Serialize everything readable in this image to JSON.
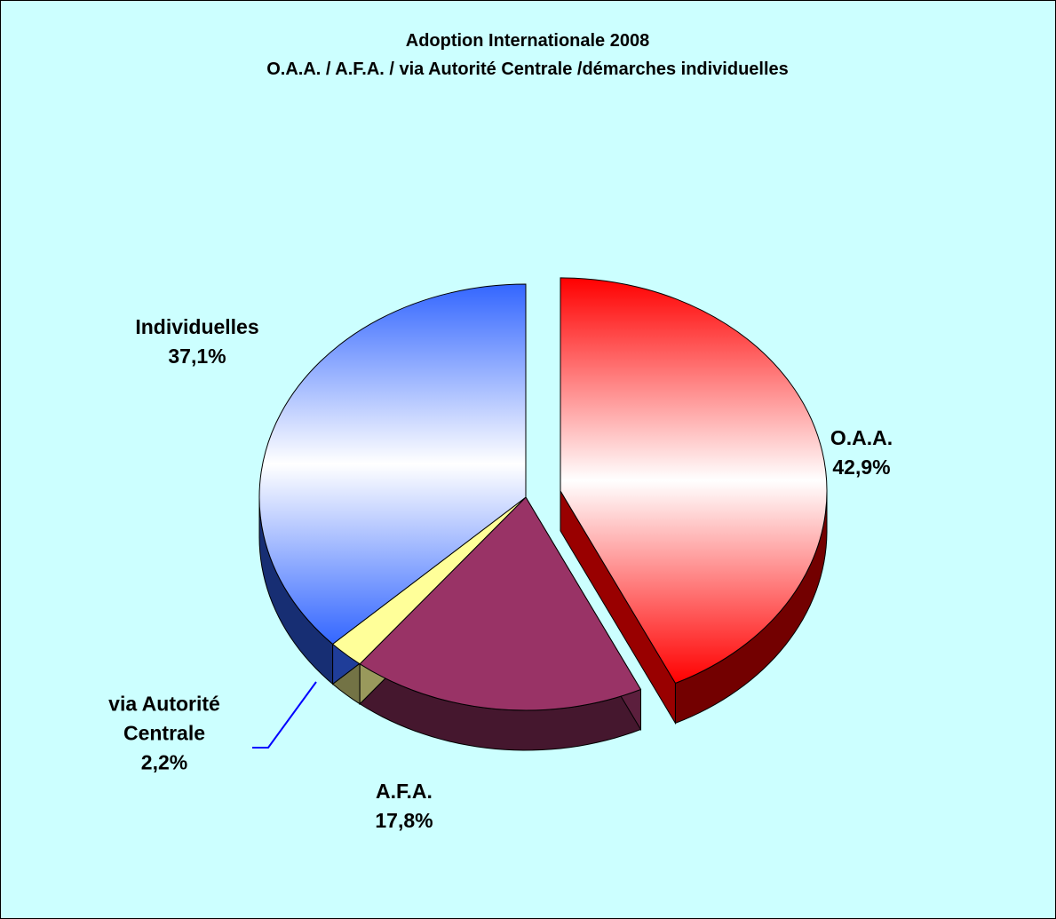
{
  "chart_data": {
    "type": "pie",
    "title": "Adoption Internationale 2008",
    "subtitle": "O.A.A. / A.F.A. / via Autorité Centrale /démarches individuelles",
    "categories": [
      "O.A.A.",
      "A.F.A.",
      "via Autorité Centrale",
      "Individuelles"
    ],
    "values": [
      42.9,
      17.8,
      2.2,
      37.1
    ],
    "value_labels": [
      "42,9%",
      "17,8%",
      "2,2%",
      "37,1%"
    ],
    "colors": [
      "#ff0000",
      "#993366",
      "#ffff99",
      "#3366ff"
    ]
  }
}
